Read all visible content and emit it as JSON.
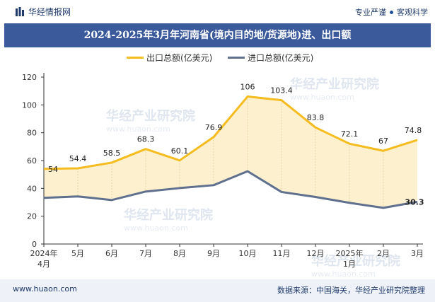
{
  "header": {
    "brand": "华经情报网",
    "tagline_left": "专业严谨",
    "tagline_right": "客观科学"
  },
  "title": "2024-2025年3月年河南省(境内目的地/货源地)进、出口额",
  "footer": {
    "site": "www.huaon.com",
    "source": "数据来源：中国海关，华经产业研究院整理"
  },
  "watermark": {
    "name": "华经产业研究院",
    "url": "www.huaon.com"
  },
  "colors": {
    "export": "#f5bc20",
    "import": "#5f6f8e",
    "fill": "#fdf0cf",
    "title_bg": "#3a5a9c",
    "brand": "#1f3a6b"
  },
  "chart_data": {
    "type": "area",
    "categories": [
      "2024年\n4月",
      "5月",
      "6月",
      "7月",
      "8月",
      "9月",
      "10月",
      "11月",
      "12月",
      "2025年\n1月",
      "2月",
      "3月"
    ],
    "series": [
      {
        "name": "出口总额(亿美元)",
        "values": [
          54,
          54.4,
          58.5,
          68.3,
          60.1,
          76.9,
          106,
          103.4,
          83.8,
          72.1,
          67,
          74.8
        ],
        "labels": [
          "54",
          "54.4",
          "58.5",
          "68.3",
          "60.1",
          "76.9",
          "106",
          "103.4",
          "83.8",
          "72.1",
          "67",
          "74.8"
        ]
      },
      {
        "name": "进口总额(亿美元)",
        "values": [
          33.2,
          34.2,
          31.6,
          37.7,
          40.2,
          42.3,
          52.3,
          37.4,
          33.8,
          29.6,
          26.0,
          30.3
        ],
        "labels": [
          "",
          "",
          "",
          "",
          "",
          "",
          "",
          "",
          "",
          "",
          "",
          "30.3"
        ]
      }
    ],
    "ylim": [
      0,
      120
    ],
    "yticks": [
      0,
      20,
      40,
      60,
      80,
      100,
      120
    ],
    "grid": false,
    "legend": "top-center"
  }
}
